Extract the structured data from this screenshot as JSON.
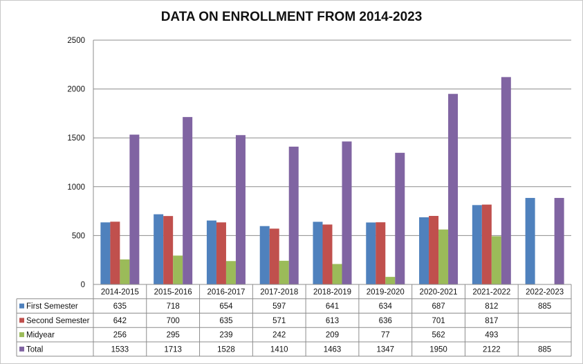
{
  "chart_data": {
    "type": "bar",
    "title": "DATA ON ENROLLMENT FROM 2014-2023",
    "categories": [
      "2014-2015",
      "2015-2016",
      "2016-2017",
      "2017-2018",
      "2018-2019",
      "2019-2020",
      "2020-2021",
      "2021-2022",
      "2022-2023"
    ],
    "series": [
      {
        "name": "First Semester",
        "color": "#4F81BD",
        "values": [
          635,
          718,
          654,
          597,
          641,
          634,
          687,
          812,
          885
        ]
      },
      {
        "name": "Second Semester",
        "color": "#C0504D",
        "values": [
          642,
          700,
          635,
          571,
          613,
          636,
          701,
          817,
          null
        ]
      },
      {
        "name": "Midyear",
        "color": "#9BBB59",
        "values": [
          256,
          295,
          239,
          242,
          209,
          77,
          562,
          493,
          null
        ]
      },
      {
        "name": "Total",
        "color": "#8064A2",
        "values": [
          1533,
          1713,
          1528,
          1410,
          1463,
          1347,
          1950,
          2122,
          885
        ]
      }
    ],
    "ylim": [
      0,
      2500
    ],
    "yticks": [
      0,
      500,
      1000,
      1500,
      2000,
      2500
    ],
    "grid": true,
    "legend": "data table below chart"
  }
}
